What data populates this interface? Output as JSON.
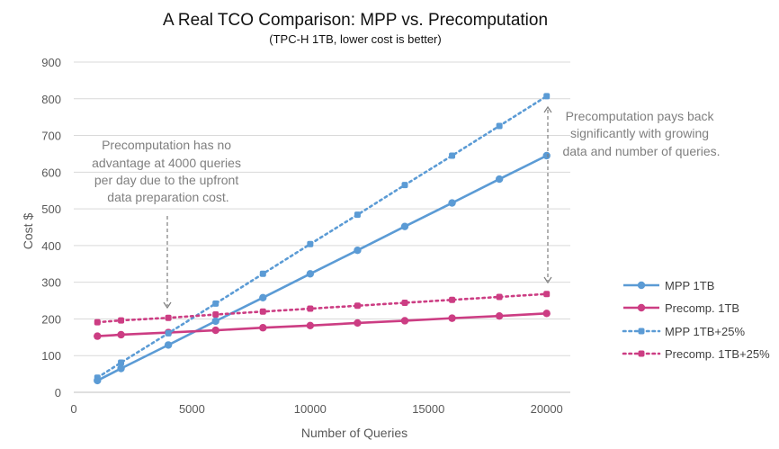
{
  "chart_data": {
    "type": "line",
    "title": "A Real TCO Comparison: MPP vs. Precomputation",
    "subtitle": "(TPC-H 1TB, lower cost is better)",
    "xlabel": "Number of Queries",
    "ylabel": "Cost $",
    "xlim": [
      0,
      21000
    ],
    "ylim": [
      0,
      900
    ],
    "xticks": [
      0,
      5000,
      10000,
      15000,
      20000
    ],
    "yticks": [
      0,
      100,
      200,
      300,
      400,
      500,
      600,
      700,
      800,
      900
    ],
    "grid": true,
    "legend_position": "right",
    "x": [
      1000,
      2000,
      4000,
      6000,
      8000,
      10000,
      12000,
      14000,
      16000,
      18000,
      20000
    ],
    "series": [
      {
        "name": "MPP 1TB",
        "color": "#5b9bd5",
        "style": "solid",
        "values": [
          32,
          65,
          129,
          194,
          258,
          323,
          387,
          452,
          516,
          581,
          645
        ]
      },
      {
        "name": "Precomp. 1TB",
        "color": "#cc3d83",
        "style": "solid",
        "values": [
          153,
          157,
          163,
          169,
          176,
          182,
          189,
          195,
          202,
          208,
          215
        ]
      },
      {
        "name": "MPP 1TB+25%",
        "color": "#5b9bd5",
        "style": "dotted",
        "values": [
          40,
          81,
          161,
          242,
          323,
          404,
          484,
          565,
          645,
          726,
          807
        ]
      },
      {
        "name": "Precomp. 1TB+25%",
        "color": "#cc3d83",
        "style": "dotted",
        "values": [
          191,
          196,
          203,
          212,
          220,
          228,
          236,
          244,
          252,
          260,
          268
        ]
      }
    ],
    "annotations": [
      {
        "lines": [
          "Precomputation has no",
          "advantage at 4000 queries",
          "per day due to the upfront",
          "data preparation cost."
        ]
      },
      {
        "lines": [
          "Precomputation pays back",
          "significantly with growing",
          "data and number of queries."
        ]
      }
    ]
  }
}
